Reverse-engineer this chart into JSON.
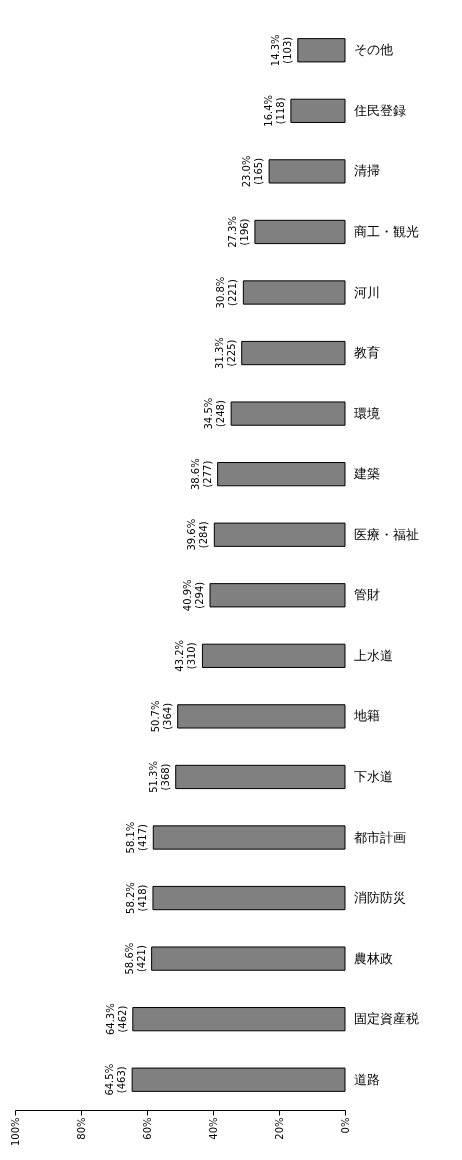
{
  "chart_data": {
    "type": "bar",
    "orientation": "horizontal",
    "categories": [
      "その他",
      "住民登録",
      "清掃",
      "商工・観光",
      "河川",
      "教育",
      "環境",
      "建築",
      "医療・福祉",
      "管財",
      "上水道",
      "地籍",
      "下水道",
      "都市計画",
      "消防防災",
      "農林政",
      "固定資産税",
      "道路"
    ],
    "values": [
      14.3,
      16.4,
      23.0,
      27.3,
      30.8,
      31.3,
      34.5,
      38.6,
      39.6,
      40.9,
      43.2,
      50.7,
      51.3,
      58.1,
      58.2,
      58.6,
      64.3,
      64.5
    ],
    "value_labels": [
      "14.3%\n(103)",
      "16.4%\n(118)",
      "23.0%\n(165)",
      "27.3%\n(196)",
      "30.8%\n(221)",
      "31.3%\n(225)",
      "34.5%\n(248)",
      "38.6%\n(277)",
      "39.6%\n(284)",
      "40.9%\n(294)",
      "43.2%\n(310)",
      "50.7%\n(364)",
      "51.3%\n(368)",
      "58.1%\n(417)",
      "58.2%\n(418)",
      "58.6%\n(421)",
      "64.3%\n(462)",
      "64.5%\n(463)"
    ],
    "color": "#808080",
    "xlim": [
      100,
      0
    ],
    "xticks": [
      {
        "value": 100,
        "label": "100%"
      },
      {
        "value": 80,
        "label": "80%"
      },
      {
        "value": 60,
        "label": "60%"
      },
      {
        "value": 40,
        "label": "40%"
      },
      {
        "value": 20,
        "label": "20%"
      },
      {
        "value": 0,
        "label": "0%"
      }
    ],
    "grid": false
  }
}
